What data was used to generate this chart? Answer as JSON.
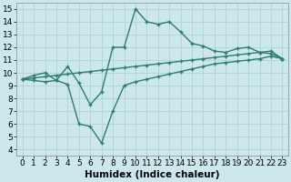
{
  "xlabel": "Humidex (Indice chaleur)",
  "x": [
    0,
    1,
    2,
    3,
    4,
    5,
    6,
    7,
    8,
    9,
    10,
    11,
    12,
    13,
    14,
    15,
    16,
    17,
    18,
    19,
    20,
    21,
    22,
    23
  ],
  "upper": [
    9.5,
    9.8,
    10.0,
    9.4,
    10.5,
    9.2,
    7.5,
    8.5,
    12.0,
    12.0,
    15.0,
    14.0,
    13.8,
    14.0,
    13.2,
    12.3,
    12.1,
    11.7,
    11.6,
    11.9,
    12.0,
    11.6,
    11.5,
    11.1
  ],
  "middle": [
    9.5,
    9.6,
    9.7,
    9.8,
    9.9,
    10.0,
    10.1,
    10.2,
    10.3,
    10.4,
    10.5,
    10.6,
    10.7,
    10.8,
    10.9,
    11.0,
    11.1,
    11.2,
    11.3,
    11.4,
    11.5,
    11.6,
    11.7,
    11.1
  ],
  "lower": [
    9.5,
    9.4,
    9.3,
    9.4,
    9.1,
    6.0,
    5.8,
    4.5,
    7.0,
    9.0,
    9.3,
    9.5,
    9.7,
    9.9,
    10.1,
    10.3,
    10.5,
    10.7,
    10.8,
    10.9,
    11.0,
    11.1,
    11.3,
    11.1
  ],
  "line_color": "#2e7d6e",
  "bg_color": "#cce8ec",
  "grid_color": "#aacdd5",
  "xlim": [
    -0.5,
    23.5
  ],
  "ylim": [
    3.5,
    15.5
  ],
  "xticks": [
    0,
    1,
    2,
    3,
    4,
    5,
    6,
    7,
    8,
    9,
    10,
    11,
    12,
    13,
    14,
    15,
    16,
    17,
    18,
    19,
    20,
    21,
    22,
    23
  ],
  "yticks": [
    4,
    5,
    6,
    7,
    8,
    9,
    10,
    11,
    12,
    13,
    14,
    15
  ],
  "tick_fontsize": 6.5,
  "xlabel_fontsize": 7.5,
  "marker": "+"
}
